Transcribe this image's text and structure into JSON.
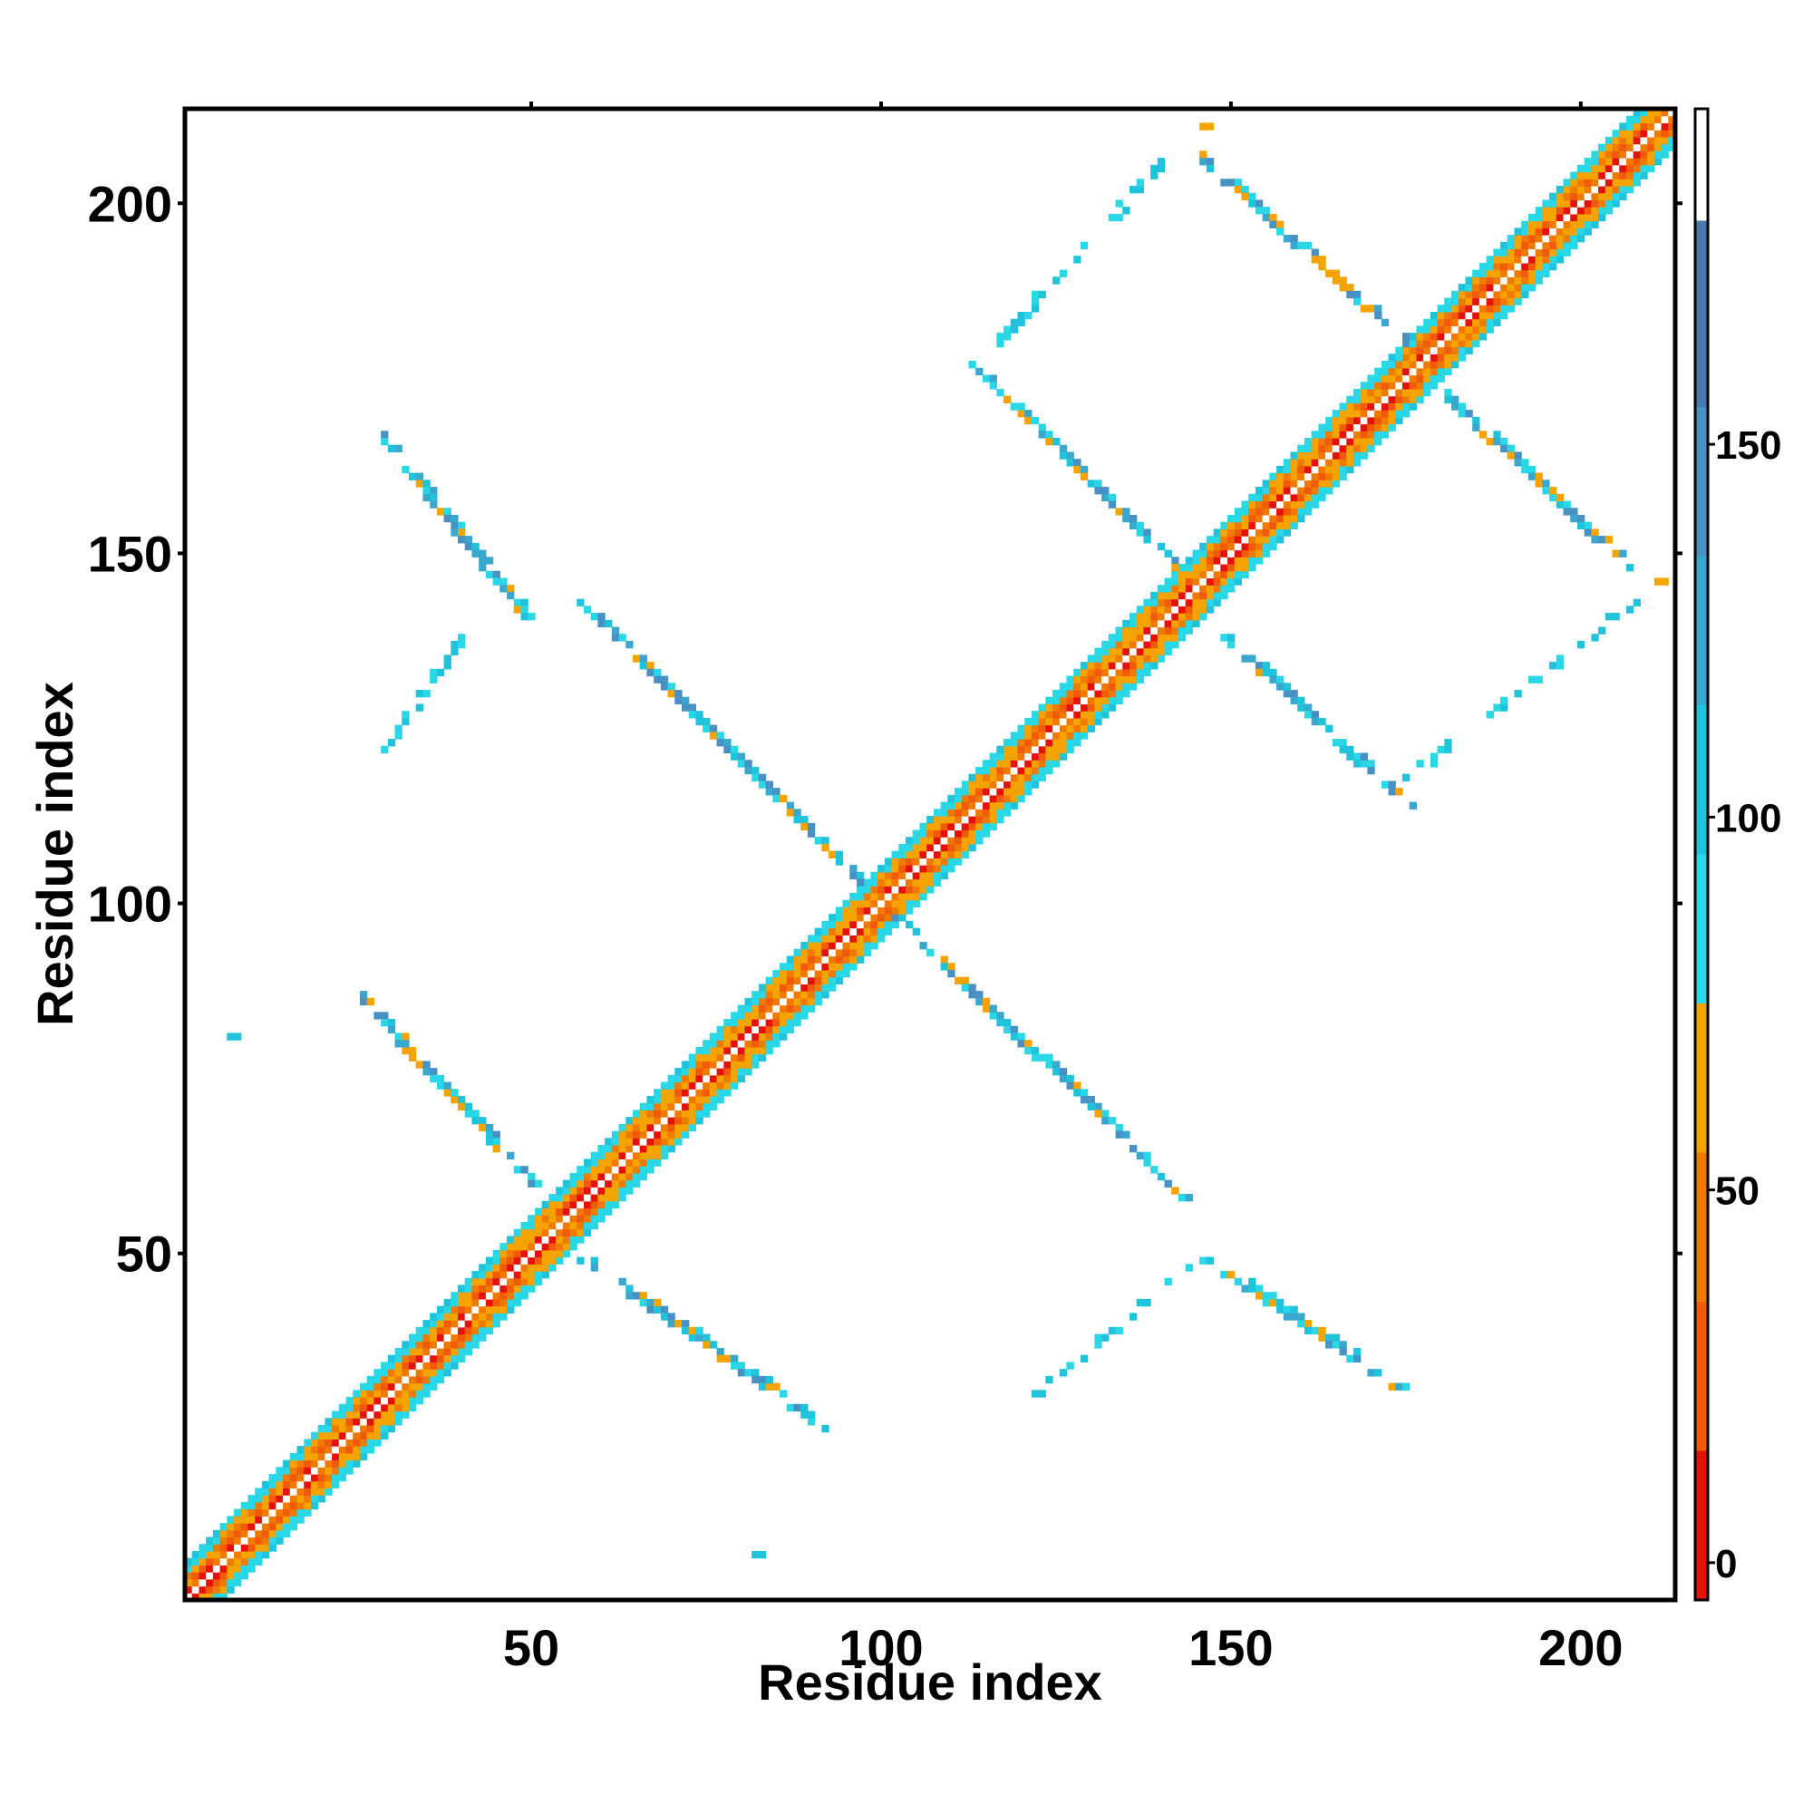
{
  "chart_data": {
    "type": "heatmap",
    "xlabel": "Residue index",
    "ylabel": "Residue index",
    "xlim": [
      1,
      213
    ],
    "ylim": [
      1,
      213
    ],
    "x_ticks": [
      50,
      100,
      150,
      200
    ],
    "y_ticks": [
      50,
      100,
      150,
      200
    ],
    "x_tick_labels": [
      "50",
      "100",
      "150",
      "200"
    ],
    "y_tick_labels": [
      "50",
      "100",
      "150",
      "200"
    ],
    "colorbar": {
      "range": [
        -5,
        195
      ],
      "ticks": [
        0,
        50,
        100,
        150
      ],
      "tick_labels": [
        "0",
        "50",
        "100",
        "150"
      ],
      "bands": [
        {
          "from": -5,
          "to": 15,
          "color": "#e3120b"
        },
        {
          "from": 15,
          "to": 35,
          "color": "#f05a0a"
        },
        {
          "from": 35,
          "to": 55,
          "color": "#f07a00"
        },
        {
          "from": 55,
          "to": 75,
          "color": "#f5a300"
        },
        {
          "from": 75,
          "to": 95,
          "color": "#29d7e6"
        },
        {
          "from": 95,
          "to": 115,
          "color": "#20c3dc"
        },
        {
          "from": 115,
          "to": 135,
          "color": "#3aa7cf"
        },
        {
          "from": 135,
          "to": 155,
          "color": "#4891c4"
        },
        {
          "from": 155,
          "to": 180,
          "color": "#4a79b0"
        },
        {
          "from": 180,
          "to": 195,
          "color": "#ffffff"
        }
      ]
    },
    "features": [
      {
        "kind": "diagonal",
        "x": [
          1,
          213
        ],
        "y": [
          1,
          213
        ],
        "halfwidth": 5
      },
      {
        "kind": "antiparallel",
        "x": [
          25,
          50
        ],
        "y": [
          87,
          60
        ],
        "values": [
          60,
          150
        ]
      },
      {
        "kind": "antiparallel",
        "x": [
          56,
          92
        ],
        "y": [
          50,
          25
        ],
        "values": [
          60,
          150
        ]
      },
      {
        "kind": "antiparallel",
        "x": [
          102,
          143
        ],
        "y": [
          98,
          58
        ],
        "values": [
          60,
          150
        ]
      },
      {
        "kind": "antiparallel",
        "x": [
          28,
          50
        ],
        "y": [
          167,
          140
        ],
        "values": [
          60,
          150
        ]
      },
      {
        "kind": "antiparallel",
        "x": [
          57,
          97
        ],
        "y": [
          143,
          103
        ],
        "values": [
          60,
          150
        ]
      },
      {
        "kind": "antiparallel",
        "x": [
          113,
          143
        ],
        "y": [
          177,
          147
        ],
        "values": [
          60,
          150
        ]
      },
      {
        "kind": "antiparallel",
        "x": [
          145,
          175
        ],
        "y": [
          50,
          30
        ],
        "values": [
          60,
          150
        ]
      },
      {
        "kind": "antiparallel",
        "x": [
          147,
          176
        ],
        "y": [
          140,
          113
        ],
        "values": [
          60,
          150
        ]
      },
      {
        "kind": "antiparallel",
        "x": [
          144,
          175
        ],
        "y": [
          208,
          180
        ],
        "values": [
          60,
          150
        ]
      },
      {
        "kind": "antiparallel",
        "x": [
          180,
          210
        ],
        "y": [
          173,
          145
        ],
        "values": [
          60,
          150
        ]
      },
      {
        "kind": "parallel",
        "x": [
          122,
          143
        ],
        "y": [
          30,
          48
        ],
        "values": [
          80,
          110
        ]
      },
      {
        "kind": "parallel",
        "x": [
          28,
          40
        ],
        "y": [
          122,
          138
        ],
        "values": [
          80,
          110
        ]
      },
      {
        "kind": "parallel",
        "x": [
          116,
          140
        ],
        "y": [
          180,
          206
        ],
        "values": [
          80,
          110
        ]
      },
      {
        "kind": "parallel",
        "x": [
          175,
          207
        ],
        "y": [
          118,
          143
        ],
        "values": [
          80,
          110
        ]
      },
      {
        "kind": "point",
        "x": 7,
        "y": 81,
        "value": 100
      },
      {
        "kind": "point",
        "x": 82,
        "y": 7,
        "value": 100
      },
      {
        "kind": "point",
        "x": 146,
        "y": 211,
        "value": 60
      },
      {
        "kind": "point",
        "x": 211,
        "y": 146,
        "value": 60
      }
    ]
  }
}
